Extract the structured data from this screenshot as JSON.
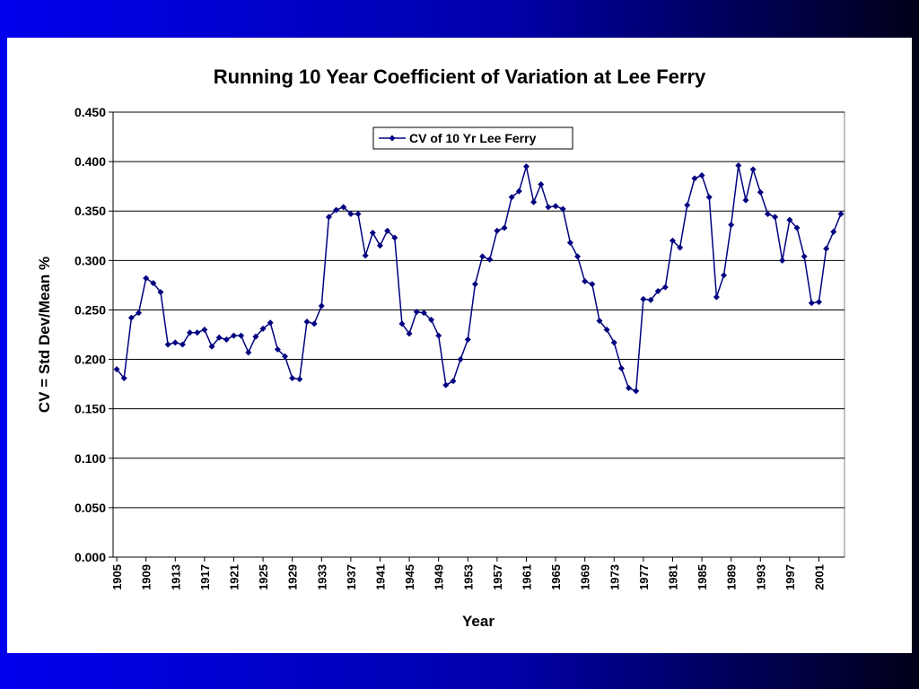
{
  "chart_data": {
    "type": "line",
    "title": "Running 10 Year Coefficient of Variation at Lee Ferry",
    "x_label": "Year",
    "y_label": "CV = Std Dev/Mean %",
    "x": [
      1905,
      1906,
      1907,
      1908,
      1909,
      1910,
      1911,
      1912,
      1913,
      1914,
      1915,
      1916,
      1917,
      1918,
      1919,
      1920,
      1921,
      1922,
      1923,
      1924,
      1925,
      1926,
      1927,
      1928,
      1929,
      1930,
      1931,
      1932,
      1933,
      1934,
      1935,
      1936,
      1937,
      1938,
      1939,
      1940,
      1941,
      1942,
      1943,
      1944,
      1945,
      1946,
      1947,
      1948,
      1949,
      1950,
      1951,
      1952,
      1953,
      1954,
      1955,
      1956,
      1957,
      1958,
      1959,
      1960,
      1961,
      1962,
      1963,
      1964,
      1965,
      1966,
      1967,
      1968,
      1969,
      1970,
      1971,
      1972,
      1973,
      1974,
      1975,
      1976,
      1977,
      1978,
      1979,
      1980,
      1981,
      1982,
      1983,
      1984,
      1985,
      1986,
      1987,
      1988,
      1989,
      1990,
      1991,
      1992,
      1993,
      1994,
      1995,
      1996,
      1997,
      1998,
      1999,
      2000,
      2001,
      2002,
      2003,
      2004
    ],
    "series": [
      {
        "name": "CV of 10 Yr Lee Ferry",
        "color": "#000080",
        "values": [
          0.19,
          0.181,
          0.242,
          0.247,
          0.282,
          0.277,
          0.268,
          0.215,
          0.217,
          0.215,
          0.227,
          0.227,
          0.23,
          0.213,
          0.222,
          0.22,
          0.224,
          0.224,
          0.207,
          0.223,
          0.231,
          0.237,
          0.21,
          0.203,
          0.181,
          0.18,
          0.238,
          0.236,
          0.254,
          0.344,
          0.351,
          0.354,
          0.347,
          0.347,
          0.305,
          0.328,
          0.315,
          0.33,
          0.323,
          0.236,
          0.226,
          0.248,
          0.247,
          0.24,
          0.224,
          0.174,
          0.178,
          0.2,
          0.22,
          0.276,
          0.304,
          0.301,
          0.33,
          0.333,
          0.364,
          0.37,
          0.395,
          0.359,
          0.377,
          0.354,
          0.355,
          0.352,
          0.318,
          0.304,
          0.279,
          0.276,
          0.239,
          0.23,
          0.217,
          0.191,
          0.171,
          0.168,
          0.261,
          0.26,
          0.269,
          0.273,
          0.32,
          0.313,
          0.356,
          0.383,
          0.386,
          0.364,
          0.263,
          0.285,
          0.336,
          0.396,
          0.361,
          0.392,
          0.369,
          0.347,
          0.344,
          0.3,
          0.341,
          0.333,
          0.304,
          0.257,
          0.258,
          0.312,
          0.329,
          0.347
        ]
      }
    ],
    "xlim": [
      1904.5,
      2004.5
    ],
    "xticks": [
      1905,
      1909,
      1913,
      1917,
      1921,
      1925,
      1929,
      1933,
      1937,
      1941,
      1945,
      1949,
      1953,
      1957,
      1961,
      1965,
      1969,
      1973,
      1977,
      1981,
      1985,
      1989,
      1993,
      1997,
      2001
    ],
    "ylim": [
      0,
      0.45
    ],
    "yticks": [
      {
        "value": 0,
        "label": "0.000"
      },
      {
        "value": 0.05,
        "label": "0.050"
      },
      {
        "value": 0.1,
        "label": "0.100"
      },
      {
        "value": 0.15,
        "label": "0.150"
      },
      {
        "value": 0.2,
        "label": "0.200"
      },
      {
        "value": 0.25,
        "label": "0.250"
      },
      {
        "value": 0.3,
        "label": "0.300"
      },
      {
        "value": 0.35,
        "label": "0.350"
      },
      {
        "value": 0.4,
        "label": "0.400"
      },
      {
        "value": 0.45,
        "label": "0.450"
      }
    ],
    "grid": true,
    "legend": "top"
  }
}
